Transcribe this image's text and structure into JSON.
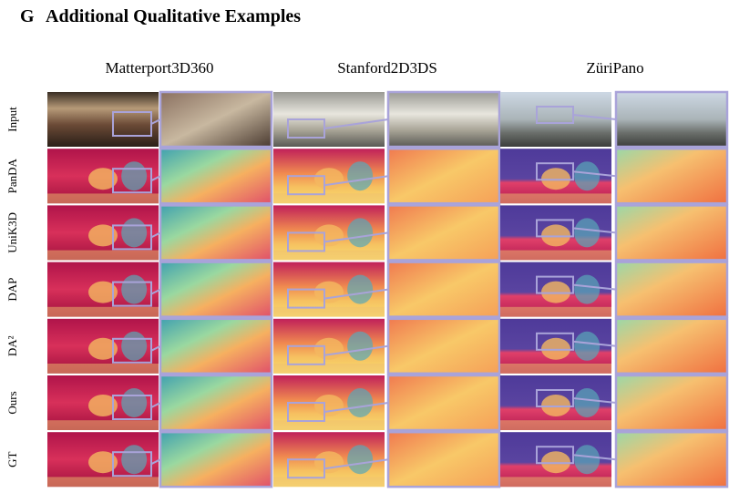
{
  "header": {
    "section": "G",
    "title": "Additional Qualitative Examples"
  },
  "columns": [
    "Matterport3D360",
    "Stanford2D3DS",
    "ZüriPano"
  ],
  "rows": [
    "Input",
    "PanDA",
    "UniK3D",
    "DAP",
    "DA²",
    "Ours",
    "GT"
  ]
}
